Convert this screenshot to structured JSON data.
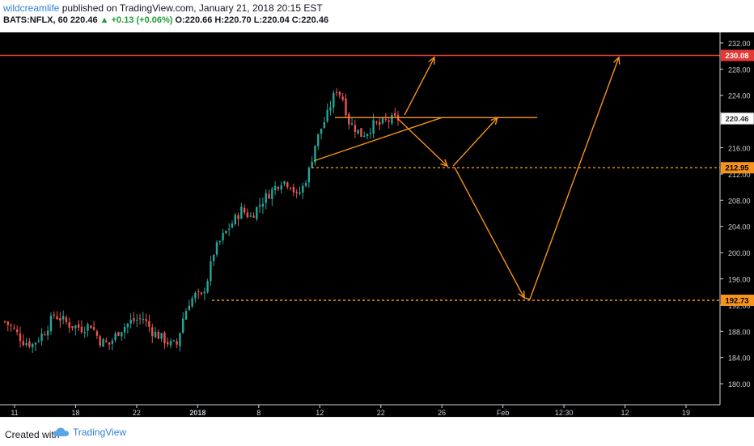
{
  "header": {
    "author": "wildcreamlife",
    "published": "published on TradingView.com, January 21, 2018 20:15 EST",
    "symbol": "BATS:NFLX, 60",
    "last": "220.46",
    "change": "+0.13 (+0.06%)",
    "ohlc": "O:220.66 H:220.70 L:220.04 C:220.46"
  },
  "footer": {
    "created_with": "Created with",
    "brand": "TradingView"
  },
  "colors": {
    "up": "#26a69a",
    "down": "#ef5350",
    "drawing": "#f7931a",
    "resistance": "#e53935",
    "price_tag_bg": "#ffffff"
  },
  "chart_data": {
    "type": "candlestick",
    "symbol": "BATS:NFLX",
    "interval": "60",
    "ylim": [
      176.8,
      233.6
    ],
    "y_ticks": [
      232.0,
      228.0,
      224.0,
      220.0,
      216.0,
      212.0,
      208.0,
      204.0,
      200.0,
      196.0,
      192.0,
      188.0,
      184.0,
      180.0
    ],
    "x_tick_labels": [
      "11",
      "18",
      "22",
      "2018",
      "8",
      "12",
      "22",
      "26",
      "Feb",
      "12:30",
      "12",
      "19"
    ],
    "price_tags": [
      {
        "label": "230.08",
        "value": 230.08,
        "style": "resistance"
      },
      {
        "label": "220.46",
        "value": 220.46,
        "style": "last"
      },
      {
        "label": "212.95",
        "value": 212.95,
        "style": "support"
      },
      {
        "label": "192.73",
        "value": 192.73,
        "style": "support"
      }
    ],
    "price_keypoints": [
      [
        0,
        189.5
      ],
      [
        3,
        188.2
      ],
      [
        6,
        186.5
      ],
      [
        9,
        186.0
      ],
      [
        13,
        188.0
      ],
      [
        16,
        190.5
      ],
      [
        18,
        190.0
      ],
      [
        21,
        189.0
      ],
      [
        25,
        188.5
      ],
      [
        28,
        189.0
      ],
      [
        31,
        186.5
      ],
      [
        34,
        186.0
      ],
      [
        37,
        188.0
      ],
      [
        41,
        189.5
      ],
      [
        45,
        190.0
      ],
      [
        48,
        188.0
      ],
      [
        51,
        187.0
      ],
      [
        54,
        186.0
      ],
      [
        56,
        186.0
      ],
      [
        58,
        190.0
      ],
      [
        60,
        192.5
      ],
      [
        62,
        193.5
      ],
      [
        64,
        193.2
      ],
      [
        66,
        196.0
      ],
      [
        68,
        200.0
      ],
      [
        71,
        202.5
      ],
      [
        74,
        204.5
      ],
      [
        77,
        206.5
      ],
      [
        80,
        205.5
      ],
      [
        84,
        208.0
      ],
      [
        87,
        209.5
      ],
      [
        90,
        211.0
      ],
      [
        93,
        210.5
      ],
      [
        95,
        208.5
      ],
      [
        97,
        210.0
      ],
      [
        99,
        212.5
      ],
      [
        101,
        216.5
      ],
      [
        103,
        219.0
      ],
      [
        105,
        221.0
      ],
      [
        106,
        222.5
      ],
      [
        108,
        225.0
      ],
      [
        110,
        223.5
      ],
      [
        112,
        220.0
      ],
      [
        114,
        219.0
      ],
      [
        116,
        218.0
      ],
      [
        118,
        218.5
      ],
      [
        120,
        219.5
      ],
      [
        122,
        219.5
      ],
      [
        124,
        220.0
      ],
      [
        126,
        220.3
      ],
      [
        128,
        220.46
      ]
    ]
  }
}
